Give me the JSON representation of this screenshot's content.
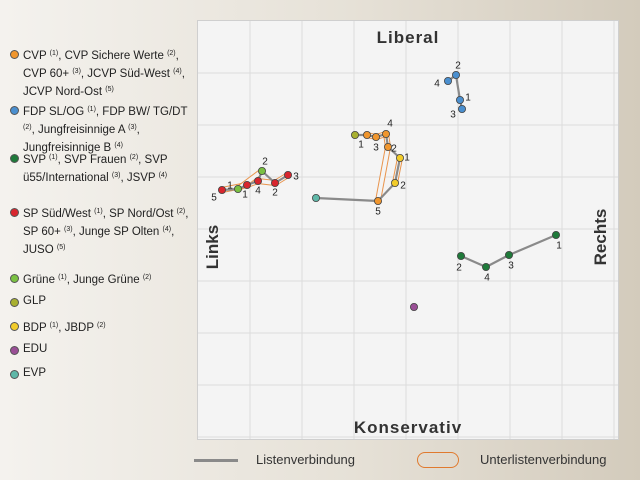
{
  "legend": [
    {
      "color": "#f0962e",
      "text": "CVP (1), CVP Sichere Werte (2), CVP 60+ (3), JCVP Süd-West (4), JCVP Nord-Ost (5)"
    },
    {
      "color": "#4a8fcf",
      "text": "FDP SL/OG (1), FDP BW/ TG/DT (2), Jungfreisinnige A (3), Jungfreisinnige B (4)"
    },
    {
      "color": "#1f7a3a",
      "text": "SVP (1), SVP Frauen (2), SVP ü55/International (3), JSVP (4)"
    },
    {
      "color": "#d8262e",
      "text": "SP Süd/West (1), SP Nord/Ost (2), SP 60+ (3), Junge SP Olten (4), JUSO (5)"
    },
    {
      "color": "#7ac142",
      "text": "Grüne (1), Junge Grüne (2)"
    },
    {
      "color": "#a8b030",
      "text": "GLP"
    },
    {
      "color": "#f2cc2a",
      "text": "BDP (1), JBDP (2)"
    },
    {
      "color": "#9a4f96",
      "text": "EDU"
    },
    {
      "color": "#5fb8a8",
      "text": "EVP"
    }
  ],
  "axes": {
    "top": "Liberal",
    "bottom": "Konservativ",
    "left": "Links",
    "right": "Rechts"
  },
  "bottom_legend": {
    "line_label": "Listenverbindung",
    "oval_label": "Unterlistenverbindung"
  },
  "chart_data": {
    "type": "scatter",
    "title": "",
    "xlabel": "Links — Rechts",
    "ylabel": "Konservativ — Liberal",
    "xlim": [
      0,
      420
    ],
    "ylim": [
      0,
      418
    ],
    "points": [
      {
        "party": "SP",
        "label": "5",
        "x": 24,
        "y": 249,
        "color": "#d8262e"
      },
      {
        "party": "Grüne",
        "label": "1",
        "x": 40,
        "y": 250,
        "color": "#7ac142"
      },
      {
        "party": "SP",
        "label": "1",
        "x": 49,
        "y": 254,
        "color": "#d8262e"
      },
      {
        "party": "SP",
        "label": "4",
        "x": 60,
        "y": 258,
        "color": "#d8262e"
      },
      {
        "party": "Grüne",
        "label": "2",
        "x": 64,
        "y": 268,
        "color": "#7ac142"
      },
      {
        "party": "SP",
        "label": "2",
        "x": 77,
        "y": 256,
        "color": "#d8262e"
      },
      {
        "party": "SP",
        "label": "3",
        "x": 90,
        "y": 264,
        "color": "#d8262e"
      },
      {
        "party": "EVP",
        "label": "",
        "x": 118,
        "y": 241,
        "color": "#5fb8a8"
      },
      {
        "party": "GLP",
        "label": "",
        "x": 157,
        "y": 304,
        "color": "#a8b030"
      },
      {
        "party": "CVP",
        "label": "1",
        "x": 169,
        "y": 304,
        "color": "#f0962e"
      },
      {
        "party": "CVP",
        "label": "3",
        "x": 178,
        "y": 302,
        "color": "#f0962e"
      },
      {
        "party": "CVP",
        "label": "4",
        "x": 188,
        "y": 305,
        "color": "#f0962e"
      },
      {
        "party": "CVP",
        "label": "2",
        "x": 190,
        "y": 292,
        "color": "#f0962e"
      },
      {
        "party": "CVP",
        "label": "5",
        "x": 180,
        "y": 238,
        "color": "#f0962e"
      },
      {
        "party": "BDP",
        "label": "1",
        "x": 202,
        "y": 281,
        "color": "#f2cc2a"
      },
      {
        "party": "BDP",
        "label": "2",
        "x": 197,
        "y": 256,
        "color": "#f2cc2a"
      },
      {
        "party": "FDP",
        "label": "2",
        "x": 258,
        "y": 364,
        "color": "#4a8fcf"
      },
      {
        "party": "FDP",
        "label": "4",
        "x": 250,
        "y": 358,
        "color": "#4a8fcf"
      },
      {
        "party": "FDP",
        "label": "1",
        "x": 262,
        "y": 339,
        "color": "#4a8fcf"
      },
      {
        "party": "FDP",
        "label": "3",
        "x": 264,
        "y": 330,
        "color": "#4a8fcf"
      },
      {
        "party": "SVP",
        "label": "1",
        "x": 358,
        "y": 204,
        "color": "#1f7a3a"
      },
      {
        "party": "SVP",
        "label": "3",
        "x": 311,
        "y": 184,
        "color": "#1f7a3a"
      },
      {
        "party": "SVP",
        "label": "4",
        "x": 288,
        "y": 172,
        "color": "#1f7a3a"
      },
      {
        "party": "SVP",
        "label": "2",
        "x": 263,
        "y": 183,
        "color": "#1f7a3a"
      },
      {
        "party": "EDU",
        "label": "",
        "x": 216,
        "y": 132,
        "color": "#9a4f96"
      }
    ],
    "listenverbindungen": [
      [
        [
          24,
          249
        ],
        [
          40,
          250
        ],
        [
          49,
          254
        ],
        [
          60,
          258
        ],
        [
          64,
          268
        ],
        [
          77,
          256
        ],
        [
          90,
          264
        ]
      ],
      [
        [
          118,
          241
        ],
        [
          180,
          238
        ],
        [
          197,
          256
        ],
        [
          202,
          281
        ],
        [
          190,
          292
        ],
        [
          188,
          305
        ],
        [
          178,
          302
        ],
        [
          169,
          304
        ],
        [
          157,
          304
        ]
      ],
      [
        [
          250,
          358
        ],
        [
          258,
          364
        ],
        [
          262,
          339
        ],
        [
          264,
          330
        ]
      ],
      [
        [
          358,
          204
        ],
        [
          311,
          184
        ],
        [
          288,
          172
        ],
        [
          263,
          183
        ]
      ]
    ],
    "unterlistenverbindungen": [
      [
        [
          24,
          249
        ],
        [
          49,
          254
        ],
        [
          60,
          258
        ],
        [
          77,
          256
        ],
        [
          90,
          264
        ]
      ],
      [
        [
          40,
          250
        ],
        [
          64,
          268
        ]
      ],
      [
        [
          169,
          304
        ],
        [
          178,
          302
        ],
        [
          188,
          305
        ],
        [
          190,
          292
        ],
        [
          180,
          238
        ]
      ],
      [
        [
          202,
          281
        ],
        [
          197,
          256
        ]
      ]
    ]
  }
}
